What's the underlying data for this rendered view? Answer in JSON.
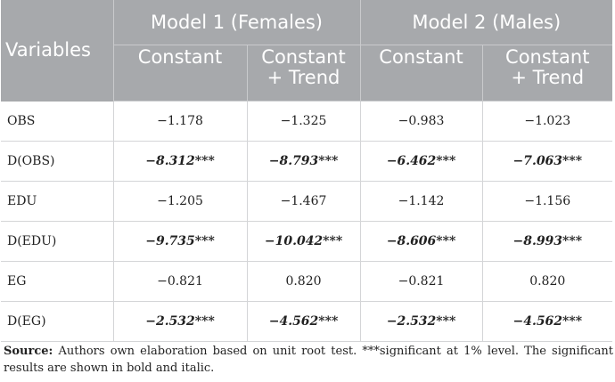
{
  "table": {
    "header": {
      "variables": "Variables",
      "model1": "Model 1 (Females)",
      "model2": "Model 2 (Males)",
      "sub": [
        [
          "Constant"
        ],
        [
          "Constant",
          "+ Trend"
        ],
        [
          "Constant"
        ],
        [
          "Constant",
          "+ Trend"
        ]
      ]
    },
    "rows": [
      {
        "var": "OBS",
        "values": [
          "−1.178",
          "−1.325",
          "−0.983",
          "−1.023"
        ],
        "stars": [
          "",
          "",
          "",
          ""
        ],
        "significant": false
      },
      {
        "var": "D(OBS)",
        "values": [
          "−8.312",
          "−8.793",
          "−6.462",
          "−7.063"
        ],
        "stars": [
          "***",
          "***",
          "***",
          "***"
        ],
        "significant": true
      },
      {
        "var": "EDU",
        "values": [
          "−1.205",
          "−1.467",
          "−1.142",
          "−1.156"
        ],
        "stars": [
          "",
          "",
          "",
          ""
        ],
        "significant": false
      },
      {
        "var": "D(EDU)",
        "values": [
          "−9.735",
          "−10.042",
          "−8.606",
          "−8.993"
        ],
        "stars": [
          "***",
          "***",
          "***",
          "***"
        ],
        "significant": true
      },
      {
        "var": "EG",
        "values": [
          "−0.821",
          "0.820",
          "−0.821",
          "0.820"
        ],
        "stars": [
          "",
          "",
          "",
          ""
        ],
        "significant": false
      },
      {
        "var": "D(EG)",
        "values": [
          "−2.532",
          "−4.562",
          "−2.532",
          "−4.562"
        ],
        "stars": [
          "***",
          "***",
          "***",
          "***"
        ],
        "significant": true
      }
    ]
  },
  "footnote": {
    "label": "Source:",
    "text": " Authors own elaboration based on unit root test. ***significant at 1% level. The significant results are shown in bold and italic."
  }
}
